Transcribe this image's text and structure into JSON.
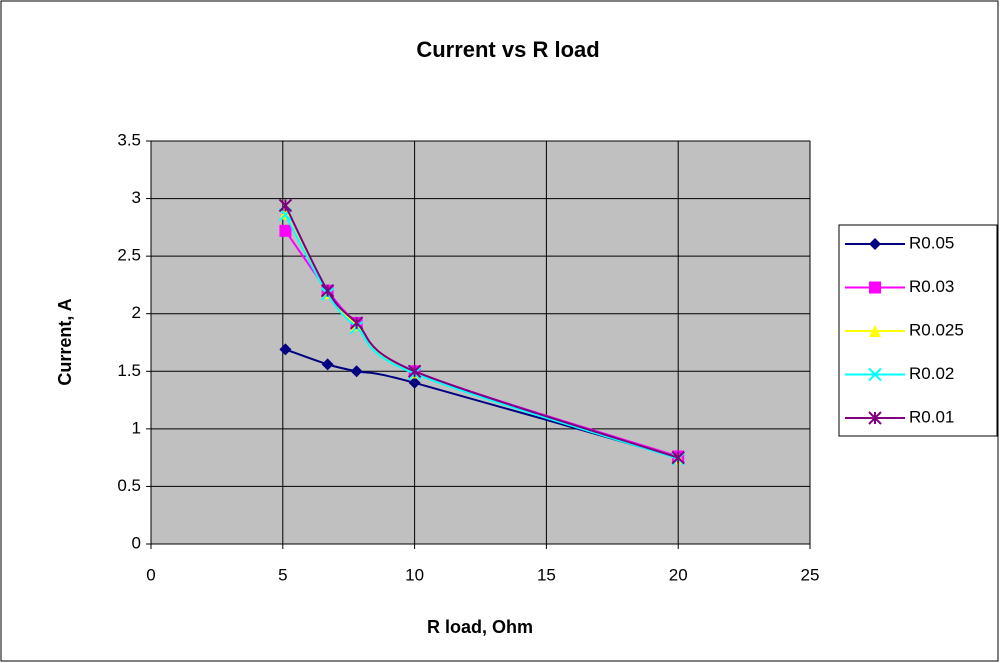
{
  "chart_data": {
    "type": "scatter",
    "title": "Current vs R load",
    "xlabel": "R load, Ohm",
    "ylabel": "Current, A",
    "smooth": true,
    "grid": true,
    "legend": "right",
    "x": [
      5.1,
      6.7,
      7.8,
      10,
      20
    ],
    "xlim": [
      0,
      25
    ],
    "xticks": [
      0,
      5,
      10,
      15,
      20,
      25
    ],
    "ylim": [
      0,
      3.5
    ],
    "yticks": [
      0,
      0.5,
      1,
      1.5,
      2,
      2.5,
      3,
      3.5
    ],
    "series": [
      {
        "name": "R0.05",
        "color": "#000080",
        "marker": "diamond",
        "values": [
          1.69,
          1.56,
          1.5,
          1.4,
          0.75
        ]
      },
      {
        "name": "R0.03",
        "color": "#ff00ff",
        "marker": "square",
        "values": [
          2.72,
          2.2,
          1.92,
          1.5,
          0.76
        ]
      },
      {
        "name": "R0.025",
        "color": "#ffff00",
        "marker": "triangle",
        "values": [
          2.87,
          2.18,
          1.9,
          1.49,
          0.75
        ]
      },
      {
        "name": "R0.02",
        "color": "#00ffff",
        "marker": "x",
        "values": [
          2.86,
          2.17,
          1.88,
          1.48,
          0.74
        ]
      },
      {
        "name": "R0.01",
        "color": "#800080",
        "marker": "star",
        "values": [
          2.94,
          2.2,
          1.92,
          1.5,
          0.75
        ]
      }
    ]
  }
}
